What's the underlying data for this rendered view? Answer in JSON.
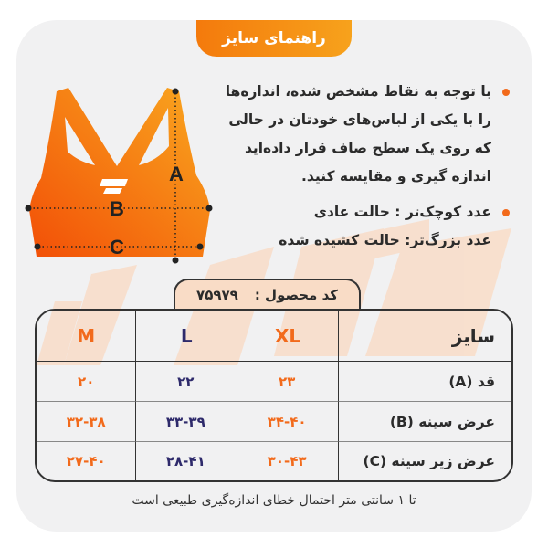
{
  "header": {
    "title": "راهنمای سایز"
  },
  "illustration": {
    "labels": {
      "a": "A",
      "b": "B",
      "c": "C"
    },
    "brand_color": "#f26a1b"
  },
  "instructions": [
    {
      "lines": [
        "با توجه به نقاط مشخص شده، اندازه‌ها",
        "را با یکی از لباس‌های خودتان در حالی",
        "که روی یک سطح صاف قرار داده‌اید",
        "اندازه گیری و مقایسه کنید."
      ]
    },
    {
      "lines": [
        "عدد کوچک‌تر : حالت عادی",
        "عدد بزرگ‌تر: حالت کشیده شده"
      ]
    }
  ],
  "product_code": {
    "label": "کد محصول :",
    "value": "۷۵۹۷۹"
  },
  "table": {
    "header": [
      "سایز",
      "XL",
      "L",
      "M"
    ],
    "rows": [
      [
        "قد (A)",
        "۲۳",
        "۲۲",
        "۲۰"
      ],
      [
        "عرض سینه (B)",
        "۳۴-۴۰",
        "۳۳-۳۹",
        "۳۲-۳۸"
      ],
      [
        "عرض زیر سینه (C)",
        "۳۰-۴۳",
        "۲۸-۴۱",
        "۲۷-۴۰"
      ]
    ]
  },
  "footer": "تا ۱ سانتی متر احتمال خطای اندازه‌گیری طبیعی است",
  "colors": {
    "orange": "#f26a1b",
    "navy": "#2e2a6b",
    "card": "#f1f1f2"
  }
}
